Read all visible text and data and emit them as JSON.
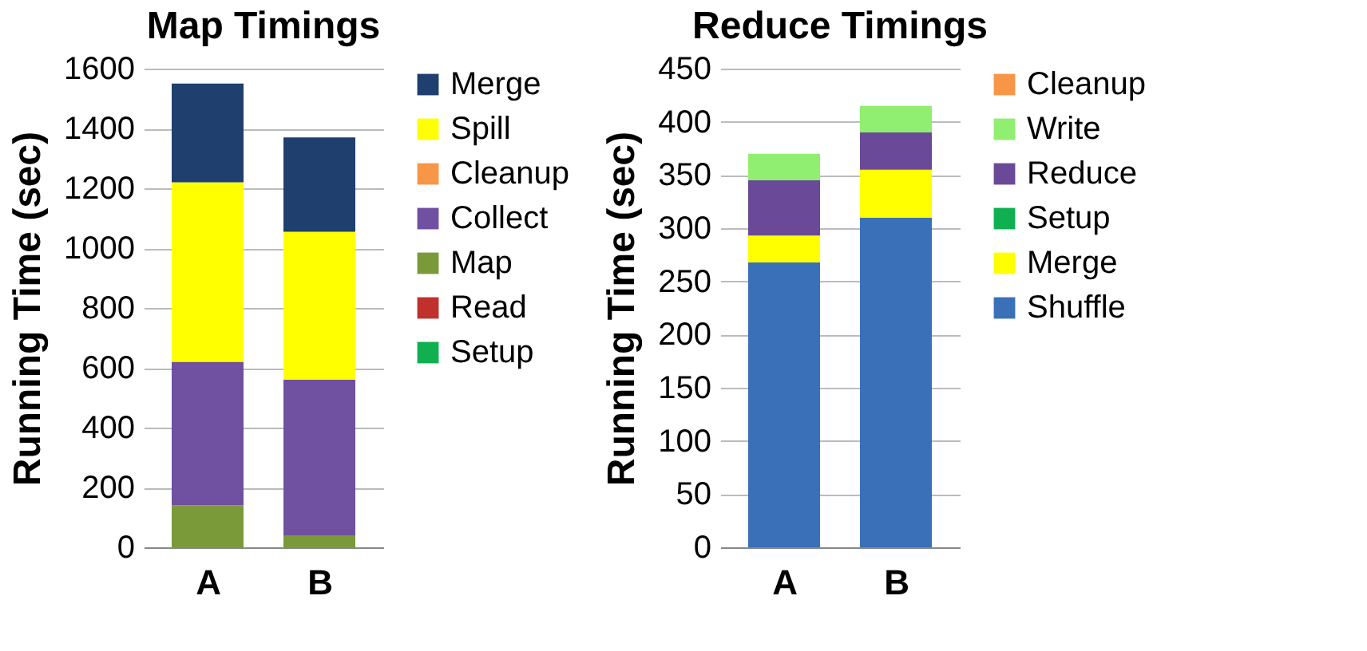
{
  "chart_data": [
    {
      "type": "bar",
      "title": "Map Timings",
      "ylabel": "Running Time (sec)",
      "categories": [
        "A",
        "B"
      ],
      "stacked": true,
      "ylim": [
        0,
        1600
      ],
      "yticks": [
        0,
        200,
        400,
        600,
        800,
        1000,
        1200,
        1400,
        1600
      ],
      "grid": "y",
      "legend": "right",
      "series": [
        {
          "name": "Setup",
          "color": "#10b050",
          "values": [
            0,
            0
          ]
        },
        {
          "name": "Read",
          "color": "#c0302c",
          "values": [
            0,
            0
          ]
        },
        {
          "name": "Map",
          "color": "#7a9a3a",
          "values": [
            140,
            40
          ]
        },
        {
          "name": "Collect",
          "color": "#7050a0",
          "values": [
            480,
            520
          ]
        },
        {
          "name": "Cleanup",
          "color": "#f79646",
          "values": [
            0,
            0
          ]
        },
        {
          "name": "Spill",
          "color": "#ffff00",
          "values": [
            600,
            495
          ]
        },
        {
          "name": "Merge",
          "color": "#1f3f6e",
          "values": [
            330,
            315
          ]
        }
      ]
    },
    {
      "type": "bar",
      "title": "Reduce Timings",
      "ylabel": "Running Time (sec)",
      "categories": [
        "A",
        "B"
      ],
      "stacked": true,
      "ylim": [
        0,
        450
      ],
      "yticks": [
        0,
        50,
        100,
        150,
        200,
        250,
        300,
        350,
        400,
        450
      ],
      "grid": "y",
      "legend": "right",
      "series": [
        {
          "name": "Shuffle",
          "color": "#3a70b8",
          "values": [
            268,
            310
          ]
        },
        {
          "name": "Merge",
          "color": "#ffff00",
          "values": [
            25,
            45
          ]
        },
        {
          "name": "Setup",
          "color": "#10b050",
          "values": [
            0,
            0
          ]
        },
        {
          "name": "Reduce",
          "color": "#6a4a98",
          "values": [
            52,
            35
          ]
        },
        {
          "name": "Write",
          "color": "#90ee70",
          "values": [
            25,
            25
          ]
        },
        {
          "name": "Cleanup",
          "color": "#f79646",
          "values": [
            0,
            0
          ]
        }
      ]
    }
  ]
}
